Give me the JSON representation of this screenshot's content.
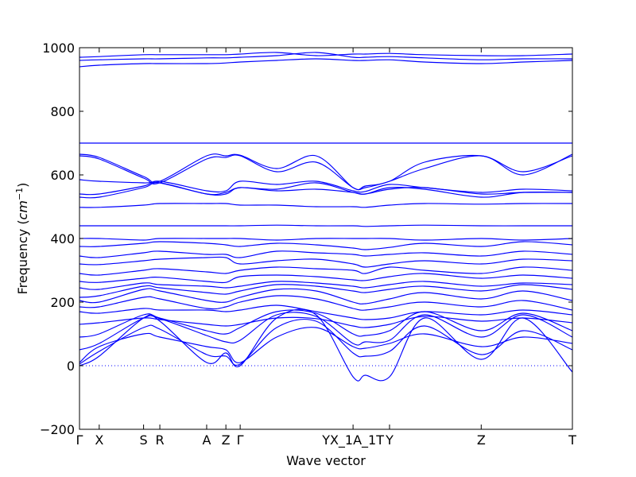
{
  "chart_data": {
    "type": "line",
    "title": "",
    "xlabel": "Wave vector",
    "ylabel_text": "Frequency (",
    "ylabel_unit_base": "cm",
    "ylabel_unit_exp": "−1",
    "ylabel_close": ")",
    "ylim": [
      -200,
      1000
    ],
    "yticks": [
      -200,
      0,
      200,
      400,
      600,
      800,
      1000
    ],
    "ytick_labels": [
      "−200",
      "0",
      "200",
      "400",
      "600",
      "800",
      "1000"
    ],
    "xlim": [
      0,
      100
    ],
    "high_symmetry_points": [
      {
        "label": "Γ",
        "x": 0
      },
      {
        "label": "X",
        "x": 4
      },
      {
        "label": "S",
        "x": 13
      },
      {
        "label": "R",
        "x": 16.3
      },
      {
        "label": "A",
        "x": 25.8
      },
      {
        "label": "Z",
        "x": 29.7
      },
      {
        "label": "Γ",
        "x": 32.6
      },
      {
        "label": "YX_1A_1T",
        "x": 55.5
      },
      {
        "label": "Y",
        "x": 62.9
      },
      {
        "label": "Z",
        "x": 81.5
      },
      {
        "label": "T",
        "x": 100
      }
    ],
    "zero_line": true,
    "grid": false,
    "legend": "none",
    "line_color": "#0000ff",
    "series": [
      {
        "x": [
          0,
          4,
          13,
          16.3,
          25.8,
          29.7,
          32.6,
          40,
          48,
          55.5,
          58,
          62.9,
          70,
          81.5,
          90,
          100
        ],
        "y": [
          0,
          30,
          150,
          140,
          10,
          40,
          0,
          150,
          160,
          -35,
          -30,
          -35,
          150,
          20,
          150,
          -20
        ]
      },
      {
        "x": [
          0,
          4,
          13,
          16.3,
          25.8,
          29.7,
          32.6,
          40,
          48,
          55.5,
          58,
          62.9,
          70,
          81.5,
          90,
          100
        ],
        "y": [
          5,
          45,
          120,
          115,
          35,
          30,
          5,
          120,
          140,
          40,
          30,
          45,
          125,
          35,
          110,
          50
        ]
      },
      {
        "x": [
          0,
          4,
          13,
          16.3,
          25.8,
          29.7,
          32.6,
          40,
          48,
          55.5,
          58,
          62.9,
          70,
          81.5,
          90,
          100
        ],
        "y": [
          10,
          60,
          100,
          90,
          60,
          50,
          10,
          90,
          120,
          60,
          55,
          70,
          100,
          60,
          90,
          70
        ]
      },
      {
        "x": [
          0,
          4,
          13,
          16.3,
          25.8,
          29.7,
          32.6,
          40,
          48,
          55.5,
          58,
          62.9,
          70,
          81.5,
          90,
          100
        ],
        "y": [
          50,
          70,
          150,
          148,
          95,
          75,
          80,
          160,
          155,
          70,
          75,
          80,
          160,
          90,
          160,
          90
        ]
      },
      {
        "x": [
          0,
          4,
          13,
          16.3,
          25.8,
          29.7,
          32.6,
          40,
          48,
          55.5,
          58,
          62.9,
          70,
          81.5,
          90,
          100
        ],
        "y": [
          90,
          100,
          160,
          150,
          110,
          100,
          120,
          170,
          165,
          100,
          95,
          110,
          170,
          110,
          165,
          110
        ]
      },
      {
        "x": [
          0,
          4,
          13,
          16.3,
          25.8,
          29.7,
          32.6,
          40,
          48,
          55.5,
          58,
          62.9,
          70,
          81.5,
          90,
          100
        ],
        "y": [
          130,
          135,
          150,
          145,
          130,
          125,
          130,
          150,
          148,
          125,
          120,
          130,
          155,
          140,
          150,
          135
        ]
      },
      {
        "x": [
          0,
          4,
          13,
          16.3,
          25.8,
          29.7,
          32.6,
          40,
          48,
          55.5,
          58,
          62.9,
          70,
          81.5,
          90,
          100
        ],
        "y": [
          170,
          165,
          180,
          175,
          175,
          170,
          175,
          190,
          170,
          150,
          145,
          150,
          170,
          160,
          175,
          160
        ]
      },
      {
        "x": [
          0,
          4,
          13,
          16.3,
          25.8,
          29.7,
          32.6,
          40,
          48,
          55.5,
          58,
          62.9,
          70,
          81.5,
          90,
          100
        ],
        "y": [
          185,
          185,
          215,
          210,
          180,
          185,
          200,
          220,
          210,
          180,
          175,
          185,
          200,
          185,
          205,
          175
        ]
      },
      {
        "x": [
          0,
          4,
          13,
          16.3,
          25.8,
          29.7,
          32.6,
          40,
          48,
          55.5,
          58,
          62.9,
          70,
          81.5,
          90,
          100
        ],
        "y": [
          205,
          200,
          240,
          235,
          205,
          200,
          215,
          240,
          235,
          200,
          195,
          210,
          230,
          210,
          235,
          205
        ]
      },
      {
        "x": [
          0,
          4,
          13,
          16.3,
          25.8,
          29.7,
          32.6,
          40,
          48,
          55.5,
          58,
          62.9,
          70,
          81.5,
          90,
          100
        ],
        "y": [
          215,
          220,
          250,
          245,
          230,
          225,
          235,
          255,
          250,
          235,
          230,
          240,
          250,
          235,
          255,
          240
        ]
      },
      {
        "x": [
          0,
          4,
          13,
          16.3,
          25.8,
          29.7,
          32.6,
          40,
          48,
          55.5,
          58,
          62.9,
          70,
          81.5,
          90,
          100
        ],
        "y": [
          245,
          240,
          260,
          255,
          250,
          245,
          250,
          265,
          260,
          250,
          245,
          255,
          265,
          250,
          260,
          255
        ]
      },
      {
        "x": [
          0,
          4,
          13,
          16.3,
          25.8,
          29.7,
          32.6,
          40,
          48,
          55.5,
          58,
          62.9,
          70,
          81.5,
          90,
          100
        ],
        "y": [
          265,
          262,
          275,
          278,
          265,
          262,
          280,
          285,
          280,
          270,
          268,
          280,
          290,
          275,
          285,
          275
        ]
      },
      {
        "x": [
          0,
          4,
          13,
          16.3,
          25.8,
          29.7,
          32.6,
          40,
          48,
          55.5,
          58,
          62.9,
          70,
          81.5,
          90,
          100
        ],
        "y": [
          290,
          285,
          300,
          305,
          295,
          290,
          300,
          310,
          305,
          300,
          290,
          310,
          300,
          290,
          310,
          300
        ]
      },
      {
        "x": [
          0,
          4,
          13,
          16.3,
          25.8,
          29.7,
          32.6,
          40,
          48,
          55.5,
          58,
          62.9,
          70,
          81.5,
          90,
          100
        ],
        "y": [
          320,
          318,
          330,
          335,
          340,
          340,
          320,
          330,
          335,
          320,
          310,
          320,
          330,
          320,
          335,
          330
        ]
      },
      {
        "x": [
          0,
          4,
          13,
          16.3,
          25.8,
          29.7,
          32.6,
          40,
          48,
          55.5,
          58,
          62.9,
          70,
          81.5,
          90,
          100
        ],
        "y": [
          345,
          340,
          355,
          360,
          350,
          350,
          340,
          360,
          355,
          350,
          345,
          350,
          355,
          345,
          360,
          350
        ]
      },
      {
        "x": [
          0,
          4,
          13,
          16.3,
          25.8,
          29.7,
          32.6,
          40,
          48,
          55.5,
          58,
          62.9,
          70,
          81.5,
          90,
          100
        ],
        "y": [
          375,
          375,
          385,
          390,
          385,
          380,
          375,
          385,
          380,
          370,
          365,
          372,
          385,
          375,
          390,
          380
        ]
      },
      {
        "x": [
          0,
          4,
          13,
          16.3,
          25.8,
          29.7,
          32.6,
          40,
          48,
          55.5,
          58,
          62.9,
          70,
          81.5,
          90,
          100
        ],
        "y": [
          400,
          400,
          395,
          400,
          400,
          400,
          400,
          395,
          400,
          400,
          400,
          400,
          395,
          400,
          395,
          400
        ]
      },
      {
        "x": [
          0,
          4,
          13,
          16.3,
          25.8,
          29.7,
          32.6,
          40,
          48,
          55.5,
          58,
          62.9,
          70,
          81.5,
          90,
          100
        ],
        "y": [
          440,
          440,
          440,
          440,
          440,
          440,
          440,
          442,
          440,
          440,
          438,
          440,
          442,
          440,
          440,
          440
        ]
      },
      {
        "x": [
          0,
          4,
          13,
          16.3,
          25.8,
          29.7,
          32.6,
          40,
          48,
          55.5,
          58,
          62.9,
          70,
          81.5,
          90,
          100
        ],
        "y": [
          498,
          498,
          505,
          510,
          510,
          510,
          505,
          505,
          500,
          500,
          498,
          505,
          510,
          508,
          510,
          510
        ]
      },
      {
        "x": [
          0,
          4,
          13,
          16.3,
          25.8,
          29.7,
          32.6,
          40,
          48,
          55.5,
          58,
          62.9,
          70,
          81.5,
          90,
          100
        ],
        "y": [
          530,
          530,
          560,
          575,
          540,
          545,
          560,
          555,
          575,
          545,
          540,
          555,
          560,
          540,
          545,
          545
        ]
      },
      {
        "x": [
          0,
          4,
          13,
          16.3,
          25.8,
          29.7,
          32.6,
          40,
          48,
          55.5,
          58,
          62.9,
          70,
          81.5,
          90,
          100
        ],
        "y": [
          540,
          540,
          565,
          580,
          550,
          550,
          580,
          570,
          580,
          550,
          548,
          570,
          560,
          545,
          555,
          550
        ]
      },
      {
        "x": [
          0,
          4,
          13,
          16.3,
          25.8,
          29.7,
          32.6,
          40,
          48,
          55.5,
          58,
          62.9,
          70,
          81.5,
          90,
          100
        ],
        "y": [
          585,
          580,
          575,
          575,
          540,
          540,
          560,
          550,
          555,
          545,
          540,
          560,
          555,
          530,
          545,
          545
        ]
      },
      {
        "x": [
          0,
          4,
          13,
          16.3,
          25.8,
          29.7,
          32.6,
          40,
          48,
          55.5,
          58,
          62.9,
          70,
          81.5,
          90,
          100
        ],
        "y": [
          660,
          650,
          590,
          575,
          650,
          655,
          660,
          610,
          640,
          560,
          560,
          580,
          620,
          660,
          600,
          665
        ]
      },
      {
        "x": [
          0,
          4,
          13,
          16.3,
          25.8,
          29.7,
          32.6,
          40,
          48,
          55.5,
          58,
          62.9,
          70,
          81.5,
          90,
          100
        ],
        "y": [
          665,
          655,
          595,
          580,
          660,
          660,
          662,
          620,
          660,
          560,
          565,
          580,
          640,
          660,
          610,
          660
        ]
      },
      {
        "x": [
          0,
          4,
          13,
          16.3,
          25.8,
          29.7,
          32.6,
          40,
          48,
          55.5,
          58,
          62.9,
          70,
          81.5,
          90,
          100
        ],
        "y": [
          700,
          700,
          700,
          700,
          700,
          700,
          700,
          700,
          700,
          700,
          700,
          700,
          700,
          700,
          700,
          700
        ]
      },
      {
        "x": [
          0,
          4,
          13,
          16.3,
          25.8,
          29.7,
          32.6,
          40,
          48,
          55.5,
          58,
          62.9,
          70,
          81.5,
          90,
          100
        ],
        "y": [
          940,
          945,
          950,
          950,
          950,
          952,
          955,
          960,
          965,
          960,
          960,
          962,
          955,
          950,
          955,
          960
        ]
      },
      {
        "x": [
          0,
          4,
          13,
          16.3,
          25.8,
          29.7,
          32.6,
          40,
          48,
          55.5,
          58,
          62.9,
          70,
          81.5,
          90,
          100
        ],
        "y": [
          960,
          962,
          965,
          965,
          968,
          968,
          970,
          975,
          985,
          970,
          970,
          972,
          968,
          962,
          965,
          965
        ]
      },
      {
        "x": [
          0,
          4,
          13,
          16.3,
          25.8,
          29.7,
          32.6,
          40,
          48,
          55.5,
          58,
          62.9,
          70,
          81.5,
          90,
          100
        ],
        "y": [
          970,
          972,
          978,
          978,
          978,
          978,
          980,
          985,
          975,
          980,
          980,
          982,
          978,
          975,
          975,
          980
        ]
      }
    ]
  }
}
